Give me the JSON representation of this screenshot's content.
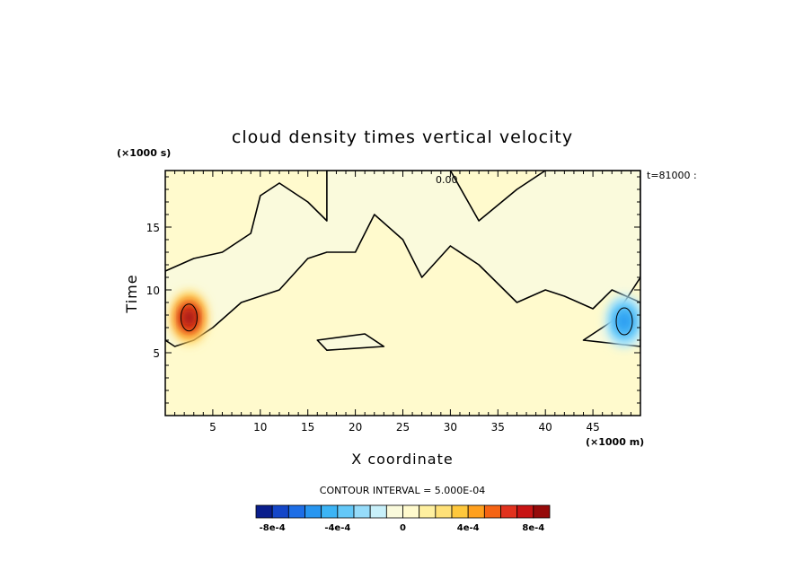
{
  "chart_data": {
    "type": "heatmap",
    "title": "cloud density times vertical velocity",
    "xlabel": "X coordinate",
    "ylabel": "Time",
    "x_unit": "(×1000 m)",
    "y_unit": "(×1000 s)",
    "time_stamp": "t=81000 :",
    "xlim": [
      0,
      50
    ],
    "ylim": [
      0,
      19.5
    ],
    "x_ticks": [
      5,
      10,
      15,
      20,
      25,
      30,
      35,
      40,
      45
    ],
    "y_ticks": [
      5,
      10,
      15
    ],
    "zero_contour_label": "0.00",
    "contour_interval": "CONTOUR INTERVAL = 5.000E-04",
    "colorbar": {
      "colors": [
        "#0a1e8c",
        "#1446c8",
        "#1e6ee6",
        "#2896f0",
        "#3cb4f5",
        "#64c8f8",
        "#96dcfa",
        "#c8f0fa",
        "#fafadc",
        "#fffacd",
        "#fff0a0",
        "#ffe178",
        "#ffc83c",
        "#ffa01e",
        "#f56414",
        "#e1321e",
        "#c81414",
        "#960a0a"
      ],
      "tick_labels": [
        "-8e-4",
        "-4e-4",
        "0",
        "4e-4",
        "8e-4"
      ],
      "tick_values": [
        -0.0008,
        -0.0004,
        0,
        0.0004,
        0.0008
      ],
      "range": [
        -0.0009,
        0.0009
      ]
    },
    "background_value": 0.0,
    "negative_regions": [
      {
        "value": -5e-05,
        "polygon": [
          [
            0,
            11.5
          ],
          [
            3,
            12.5
          ],
          [
            6,
            13
          ],
          [
            9,
            14.5
          ],
          [
            10,
            17.5
          ],
          [
            12,
            18.5
          ],
          [
            15,
            17
          ],
          [
            17,
            15.5
          ],
          [
            17,
            19.5
          ],
          [
            30,
            19.5
          ],
          [
            33,
            15.5
          ],
          [
            37,
            18
          ],
          [
            40,
            19.5
          ],
          [
            50,
            19.5
          ],
          [
            50,
            11
          ],
          [
            47,
            7.5
          ],
          [
            44,
            6
          ],
          [
            50,
            5.5
          ],
          [
            50,
            9
          ],
          [
            47,
            10
          ],
          [
            45,
            8.5
          ],
          [
            42,
            9.5
          ],
          [
            40,
            10
          ],
          [
            37,
            9
          ],
          [
            33,
            12
          ],
          [
            30,
            13.5
          ],
          [
            27,
            11
          ],
          [
            25,
            14
          ],
          [
            22,
            16
          ],
          [
            20,
            13
          ],
          [
            17,
            13
          ],
          [
            15,
            12.5
          ],
          [
            12,
            10
          ],
          [
            8,
            9
          ],
          [
            5,
            7
          ],
          [
            3,
            6
          ],
          [
            1,
            5.5
          ],
          [
            0,
            6
          ]
        ]
      },
      {
        "value": -5e-05,
        "polygon": [
          [
            16,
            6
          ],
          [
            21,
            6.5
          ],
          [
            23,
            5.5
          ],
          [
            17,
            5.2
          ]
        ]
      }
    ],
    "blobs": [
      {
        "name": "positive-maximum",
        "x": 2.5,
        "t": 7.8,
        "value": 0.0008
      },
      {
        "name": "negative-minimum",
        "x": 48.3,
        "t": 7.5,
        "value": -0.0006
      }
    ]
  }
}
